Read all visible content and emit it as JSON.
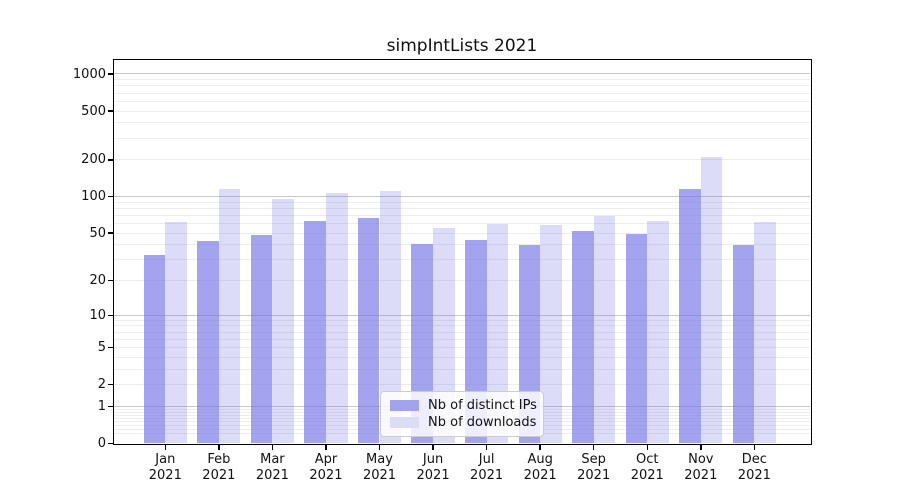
{
  "title": "simpIntLists 2021",
  "chart_data": {
    "type": "bar",
    "title": "simpIntLists 2021",
    "y_scale": "log1p",
    "ylim": [
      0,
      1300
    ],
    "grid": true,
    "legend_position": "lower center",
    "categories": [
      "Jan\n2021",
      "Feb\n2021",
      "Mar\n2021",
      "Apr\n2021",
      "May\n2021",
      "Jun\n2021",
      "Jul\n2021",
      "Aug\n2021",
      "Sep\n2021",
      "Oct\n2021",
      "Nov\n2021",
      "Dec\n2021"
    ],
    "y_ticks": [
      1000,
      500,
      200,
      100,
      50,
      20,
      10,
      5,
      2,
      1,
      0
    ],
    "y_major_gridlines": [
      1,
      10,
      100,
      1000
    ],
    "y_minor_decades": [
      0.1,
      1,
      10,
      100
    ],
    "y_minor_multiples": [
      2,
      3,
      4,
      5,
      6,
      7,
      8,
      9
    ],
    "series": [
      {
        "name": "Nb of distinct IPs",
        "swatch_color": "#a2a2ee",
        "bar_color": "rgba(115,115,232,0.66)",
        "values": [
          33,
          43,
          48,
          63,
          67,
          41,
          44,
          40,
          52,
          49,
          115,
          40
        ]
      },
      {
        "name": "Nb of downloads",
        "swatch_color": "#dcdcf9",
        "bar_color": "rgba(115,115,232,0.25)",
        "values": [
          62,
          115,
          95,
          108,
          112,
          55,
          60,
          59,
          69,
          63,
          210,
          62
        ]
      }
    ]
  },
  "colors": {
    "grid_major": "#c8c8c8",
    "grid_minor": "#ededed",
    "spine": "#000000",
    "text": "#111111",
    "legend_border": "#cccccc",
    "background": "#ffffff"
  }
}
